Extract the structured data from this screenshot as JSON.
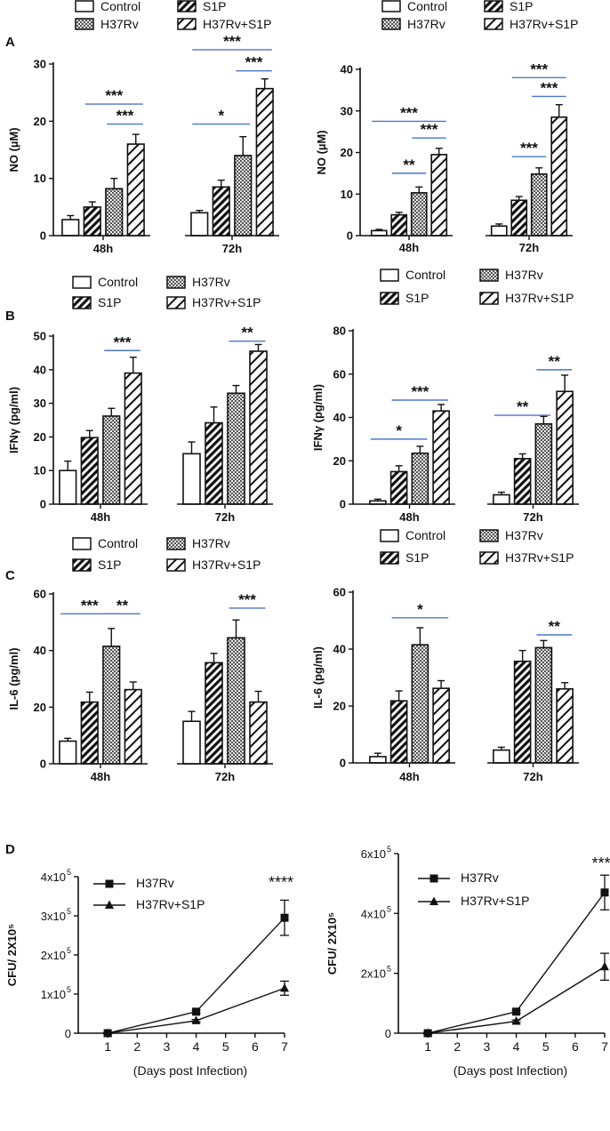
{
  "panels": [
    {
      "letter": "A"
    },
    {
      "letter": "B"
    },
    {
      "letter": "C"
    },
    {
      "letter": "D"
    }
  ],
  "chart_data": [
    {
      "id": "A1",
      "type": "bar",
      "panel": "A",
      "position": "left",
      "ylabel": "NO (µM)",
      "ylim": [
        0,
        30
      ],
      "yticks": [
        "0",
        "10",
        "20",
        "30"
      ],
      "categories": [
        "48h",
        "72h"
      ],
      "series": [
        {
          "name": "Control",
          "pattern": "white",
          "values": [
            2.8,
            4.0
          ],
          "errors": [
            0.7,
            0.4
          ]
        },
        {
          "name": "S1P",
          "pattern": "diag",
          "values": [
            5.0,
            8.5
          ],
          "errors": [
            0.9,
            1.2
          ]
        },
        {
          "name": "H37Rv",
          "pattern": "dots",
          "values": [
            8.2,
            14.0
          ],
          "errors": [
            1.8,
            3.3
          ]
        },
        {
          "name": "H37Rv+S1P",
          "pattern": "wide",
          "values": [
            16.0,
            25.7
          ],
          "errors": [
            1.7,
            1.7
          ]
        }
      ],
      "legend": [
        {
          "name": "Control",
          "pattern": "white"
        },
        {
          "name": "S1P",
          "pattern": "diag"
        },
        {
          "name": "H37Rv",
          "pattern": "dots"
        },
        {
          "name": "H37Rv+S1P",
          "pattern": "wide"
        }
      ],
      "annotations": [
        {
          "text": "***",
          "cat": 0,
          "from": 1,
          "to": 3,
          "y": 23
        },
        {
          "text": "***",
          "cat": 0,
          "from": 2,
          "to": 3,
          "y": 19.5
        },
        {
          "text": "***",
          "cat": 1,
          "from": 0,
          "to": 3,
          "y": 32.5
        },
        {
          "text": "***",
          "cat": 1,
          "from": 2,
          "to": 3,
          "y": 28.8
        },
        {
          "text": "*",
          "cat": 1,
          "from": 0,
          "to": 2,
          "y": 19.5
        }
      ]
    },
    {
      "id": "A2",
      "type": "bar",
      "panel": "A",
      "position": "right",
      "ylabel": "NO (µM)",
      "ylim": [
        0,
        40
      ],
      "yticks": [
        "0",
        "10",
        "20",
        "30",
        "40"
      ],
      "categories": [
        "48h",
        "72h"
      ],
      "series": [
        {
          "name": "Control",
          "pattern": "white",
          "values": [
            1.2,
            2.3
          ],
          "errors": [
            0.3,
            0.5
          ]
        },
        {
          "name": "S1P",
          "pattern": "diag",
          "values": [
            5.0,
            8.5
          ],
          "errors": [
            0.6,
            0.9
          ]
        },
        {
          "name": "H37Rv",
          "pattern": "dots",
          "values": [
            10.3,
            14.8
          ],
          "errors": [
            1.4,
            1.5
          ]
        },
        {
          "name": "H37Rv+S1P",
          "pattern": "wide",
          "values": [
            19.5,
            28.5
          ],
          "errors": [
            1.5,
            3.0
          ]
        }
      ],
      "legend": [
        {
          "name": "Control",
          "pattern": "white"
        },
        {
          "name": "S1P",
          "pattern": "diag"
        },
        {
          "name": "H37Rv",
          "pattern": "dots"
        },
        {
          "name": "H37Rv+S1P",
          "pattern": "wide"
        }
      ],
      "annotations": [
        {
          "text": "***",
          "cat": 0,
          "from": 0,
          "to": 3,
          "y": 27.5
        },
        {
          "text": "***",
          "cat": 0,
          "from": 2,
          "to": 3,
          "y": 23.5
        },
        {
          "text": "**",
          "cat": 0,
          "from": 1,
          "to": 2,
          "y": 15
        },
        {
          "text": "***",
          "cat": 1,
          "from": 1,
          "to": 3,
          "y": 38
        },
        {
          "text": "***",
          "cat": 1,
          "from": 2,
          "to": 3,
          "y": 33.5
        },
        {
          "text": "***",
          "cat": 1,
          "from": 1,
          "to": 2,
          "y": 19
        }
      ]
    },
    {
      "id": "B1",
      "type": "bar",
      "panel": "B",
      "position": "left",
      "ylabel": "IFNγ (pg/ml)",
      "ylim": [
        0,
        50
      ],
      "yticks": [
        "0",
        "10",
        "20",
        "30",
        "40",
        "50"
      ],
      "categories": [
        "48h",
        "72h"
      ],
      "series": [
        {
          "name": "Control",
          "pattern": "white",
          "values": [
            10.0,
            15.0
          ],
          "errors": [
            2.8,
            3.5
          ]
        },
        {
          "name": "S1P",
          "pattern": "diag",
          "values": [
            19.8,
            24.2
          ],
          "errors": [
            2.1,
            4.7
          ]
        },
        {
          "name": "H37Rv",
          "pattern": "dots",
          "values": [
            26.2,
            33.0
          ],
          "errors": [
            2.3,
            2.3
          ]
        },
        {
          "name": "H37Rv+S1P",
          "pattern": "wide",
          "values": [
            39.0,
            45.5
          ],
          "errors": [
            4.7,
            2.0
          ]
        }
      ],
      "legend": [
        {
          "name": "Control",
          "pattern": "white"
        },
        {
          "name": "H37Rv",
          "pattern": "dots"
        },
        {
          "name": "S1P",
          "pattern": "diag"
        },
        {
          "name": "H37Rv+S1P",
          "pattern": "wide"
        }
      ],
      "annotations": [
        {
          "text": "***",
          "cat": 0,
          "from": 2,
          "to": 3,
          "y": 45.7
        },
        {
          "text": "**",
          "cat": 1,
          "from": 2,
          "to": 3,
          "y": 48.5
        }
      ]
    },
    {
      "id": "B2",
      "type": "bar",
      "panel": "B",
      "position": "right",
      "ylabel": "IFNγ (pg/ml)",
      "ylim": [
        0,
        80
      ],
      "yticks": [
        "0",
        "20",
        "40",
        "60",
        "80"
      ],
      "categories": [
        "48h",
        "72h"
      ],
      "series": [
        {
          "name": "Control",
          "pattern": "white",
          "values": [
            1.5,
            4.3
          ],
          "errors": [
            0.8,
            1.2
          ]
        },
        {
          "name": "S1P",
          "pattern": "diag",
          "values": [
            15.0,
            21.0
          ],
          "errors": [
            2.7,
            2.2
          ]
        },
        {
          "name": "H37Rv",
          "pattern": "dots",
          "values": [
            23.5,
            37.0
          ],
          "errors": [
            3.2,
            3.5
          ]
        },
        {
          "name": "H37Rv+S1P",
          "pattern": "wide",
          "values": [
            43.0,
            52.0
          ],
          "errors": [
            3.0,
            7.5
          ]
        }
      ],
      "legend": [
        {
          "name": "Control",
          "pattern": "white"
        },
        {
          "name": "H37Rv",
          "pattern": "dots"
        },
        {
          "name": "S1P",
          "pattern": "diag"
        },
        {
          "name": "H37Rv+S1P",
          "pattern": "wide"
        }
      ],
      "annotations": [
        {
          "text": "*",
          "cat": 0,
          "from": 0,
          "to": 2,
          "y": 30
        },
        {
          "text": "***",
          "cat": 0,
          "from": 1,
          "to": 3,
          "y": 48
        },
        {
          "text": "**",
          "cat": 1,
          "from": 0,
          "to": 2,
          "y": 41
        },
        {
          "text": "**",
          "cat": 1,
          "from": 2,
          "to": 3,
          "y": 62
        }
      ]
    },
    {
      "id": "C1",
      "type": "bar",
      "panel": "C",
      "position": "left",
      "ylabel": "IL-6 (pg/ml)",
      "ylim": [
        0,
        60
      ],
      "yticks": [
        "0",
        "20",
        "40",
        "60"
      ],
      "categories": [
        "48h",
        "72h"
      ],
      "series": [
        {
          "name": "Control",
          "pattern": "white",
          "values": [
            8.0,
            15.0
          ],
          "errors": [
            1.0,
            3.5
          ]
        },
        {
          "name": "S1P",
          "pattern": "diag",
          "values": [
            21.8,
            35.7
          ],
          "errors": [
            3.5,
            3.3
          ]
        },
        {
          "name": "H37Rv",
          "pattern": "dots",
          "values": [
            41.5,
            44.5
          ],
          "errors": [
            6.3,
            6.3
          ]
        },
        {
          "name": "H37Rv+S1P",
          "pattern": "wide",
          "values": [
            26.2,
            21.8
          ],
          "errors": [
            2.7,
            3.8
          ]
        }
      ],
      "legend": [
        {
          "name": "Control",
          "pattern": "white"
        },
        {
          "name": "H37Rv",
          "pattern": "dots"
        },
        {
          "name": "S1P",
          "pattern": "diag"
        },
        {
          "name": "H37Rv+S1P",
          "pattern": "wide"
        }
      ],
      "annotations": [
        {
          "text": "***",
          "cat": 0,
          "from": 0,
          "to": 2,
          "y": 53
        },
        {
          "text": "**",
          "cat": 0,
          "from": 2,
          "to": 3,
          "y": 53
        },
        {
          "text": "***",
          "cat": 1,
          "from": 2,
          "to": 3,
          "y": 55
        }
      ]
    },
    {
      "id": "C2",
      "type": "bar",
      "panel": "C",
      "position": "right",
      "ylabel": "IL-6 (pg/ml)",
      "ylim": [
        0,
        60
      ],
      "yticks": [
        "0",
        "20",
        "40",
        "60"
      ],
      "categories": [
        "48h",
        "72h"
      ],
      "series": [
        {
          "name": "Control",
          "pattern": "white",
          "values": [
            2.2,
            4.5
          ],
          "errors": [
            1.2,
            1.0
          ]
        },
        {
          "name": "S1P",
          "pattern": "diag",
          "values": [
            21.8,
            35.7
          ],
          "errors": [
            3.5,
            3.8
          ]
        },
        {
          "name": "H37Rv",
          "pattern": "dots",
          "values": [
            41.5,
            40.5
          ],
          "errors": [
            6.0,
            2.5
          ]
        },
        {
          "name": "H37Rv+S1P",
          "pattern": "wide",
          "values": [
            26.2,
            26.0
          ],
          "errors": [
            2.7,
            2.2
          ]
        }
      ],
      "legend": [
        {
          "name": "Control",
          "pattern": "white"
        },
        {
          "name": "H37Rv",
          "pattern": "dots"
        },
        {
          "name": "S1P",
          "pattern": "diag"
        },
        {
          "name": "H37Rv+S1P",
          "pattern": "wide"
        }
      ],
      "annotations": [
        {
          "text": "*",
          "cat": 0,
          "from": 1,
          "to": 3,
          "y": 51
        },
        {
          "text": "**",
          "cat": 1,
          "from": 2,
          "to": 3,
          "y": 45
        }
      ]
    },
    {
      "id": "D1",
      "type": "line",
      "panel": "D",
      "position": "left",
      "ylabel": "CFU/ 2X10⁵",
      "xlabel": "(Days post Infection)",
      "x_ticks": [
        1,
        2,
        3,
        4,
        5,
        6,
        7
      ],
      "xlim": [
        0,
        7
      ],
      "ylim": [
        0,
        400000
      ],
      "yticks": [
        {
          "value": 0,
          "base": "0",
          "exp": ""
        },
        {
          "value": 100000,
          "base": "1x10",
          "exp": "5"
        },
        {
          "value": 200000,
          "base": "2x10",
          "exp": "5"
        },
        {
          "value": 300000,
          "base": "3x10",
          "exp": "5"
        },
        {
          "value": 400000,
          "base": "4x10",
          "exp": "5"
        }
      ],
      "series": [
        {
          "name": "H37Rv",
          "marker": "square",
          "x": [
            1,
            4,
            7
          ],
          "y": [
            0,
            55000,
            295000
          ],
          "errors": [
            2000,
            4000,
            45000
          ]
        },
        {
          "name": "H37Rv+S1P",
          "marker": "triangle",
          "x": [
            1,
            4,
            7
          ],
          "y": [
            0,
            32000,
            115000
          ],
          "errors": [
            2000,
            3000,
            18000
          ]
        }
      ],
      "annotations": [
        {
          "text": "****",
          "x": 7,
          "y": 372000
        }
      ]
    },
    {
      "id": "D2",
      "type": "line",
      "panel": "D",
      "position": "right",
      "ylabel": "CFU/ 2X10⁵",
      "xlabel": "(Days post Infection)",
      "x_ticks": [
        1,
        2,
        3,
        4,
        5,
        6,
        7
      ],
      "xlim": [
        0,
        7
      ],
      "ylim": [
        0,
        600000
      ],
      "yticks": [
        {
          "value": 0,
          "base": "0",
          "exp": ""
        },
        {
          "value": 200000,
          "base": "2x10",
          "exp": "5"
        },
        {
          "value": 400000,
          "base": "4x10",
          "exp": "5"
        },
        {
          "value": 600000,
          "base": "6x10",
          "exp": "5"
        }
      ],
      "series": [
        {
          "name": "H37Rv",
          "marker": "square",
          "x": [
            1,
            4,
            7
          ],
          "y": [
            0,
            72000,
            470000
          ],
          "errors": [
            3000,
            5000,
            58000
          ]
        },
        {
          "name": "H37Rv+S1P",
          "marker": "triangle",
          "x": [
            1,
            4,
            7
          ],
          "y": [
            0,
            40000,
            222000
          ],
          "errors": [
            3000,
            4000,
            45000
          ]
        }
      ],
      "annotations": [
        {
          "text": "***",
          "x": 7,
          "y": 550000
        }
      ]
    }
  ]
}
